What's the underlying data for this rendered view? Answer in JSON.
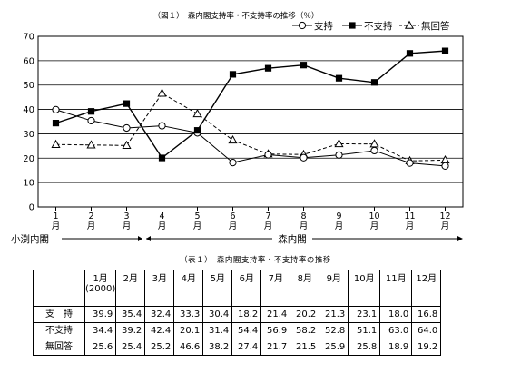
{
  "chart_data": {
    "type": "line",
    "title": "（図１）　森内閣支持率・不支持率の推移（％）",
    "categories": [
      "1",
      "2",
      "3",
      "4",
      "5",
      "6",
      "7",
      "8",
      "9",
      "10",
      "11",
      "12"
    ],
    "category_suffix": "月",
    "ylim": [
      0,
      70
    ],
    "yticks": [
      0,
      10,
      20,
      30,
      40,
      50,
      60,
      70
    ],
    "grid": true,
    "legend_position": "top-right",
    "series": [
      {
        "name": "支持",
        "marker": "circle-open",
        "line": "solid",
        "color": "#000000",
        "values": [
          39.9,
          35.4,
          32.4,
          33.3,
          30.4,
          18.2,
          21.4,
          20.2,
          21.3,
          23.1,
          18.0,
          16.8
        ]
      },
      {
        "name": "不支持",
        "marker": "square-filled",
        "line": "solid",
        "color": "#000000",
        "values": [
          34.4,
          39.2,
          42.4,
          20.1,
          31.4,
          54.4,
          56.9,
          58.2,
          52.8,
          51.1,
          63.0,
          64.0
        ]
      },
      {
        "name": "無回答",
        "marker": "triangle-open",
        "line": "dashed",
        "color": "#000000",
        "values": [
          25.6,
          25.4,
          25.2,
          46.6,
          38.2,
          27.4,
          21.7,
          21.5,
          25.9,
          25.8,
          18.9,
          19.2
        ]
      }
    ],
    "periods": [
      {
        "label": "小渕内閣",
        "start_month": 1,
        "end_month": 3
      },
      {
        "label": "森内閣",
        "start_month": 4,
        "end_month": 12
      }
    ]
  },
  "table": {
    "caption": "（表１）　森内閣支持率・不支持率の推移",
    "header": [
      "1月",
      "2月",
      "3月",
      "4月",
      "5月",
      "6月",
      "7月",
      "8月",
      "9月",
      "10月",
      "11月",
      "12月"
    ],
    "first_year_note": "(2000)",
    "rows": [
      {
        "label": "支　持",
        "values": [
          "39.9",
          "35.4",
          "32.4",
          "33.3",
          "30.4",
          "18.2",
          "21.4",
          "20.2",
          "21.3",
          "23.1",
          "18.0",
          "16.8"
        ]
      },
      {
        "label": "不支持",
        "values": [
          "34.4",
          "39.2",
          "42.4",
          "20.1",
          "31.4",
          "54.4",
          "56.9",
          "58.2",
          "52.8",
          "51.1",
          "63.0",
          "64.0"
        ]
      },
      {
        "label": "無回答",
        "values": [
          "25.6",
          "25.4",
          "25.2",
          "46.6",
          "38.2",
          "27.4",
          "21.7",
          "21.5",
          "25.9",
          "25.8",
          "18.9",
          "19.2"
        ]
      }
    ]
  }
}
